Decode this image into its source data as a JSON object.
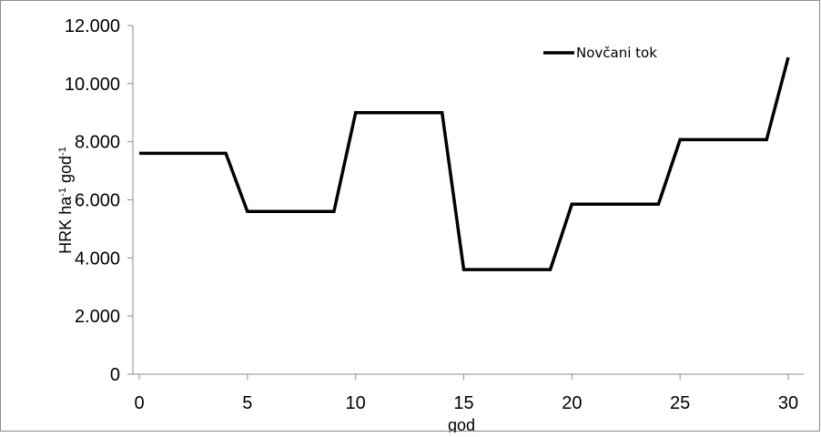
{
  "chart_data": {
    "type": "line",
    "xlabel": "god",
    "ylabel": "HRK ha-1 god-1",
    "ylabel_parts": {
      "base1": "HRK ha",
      "sup1": "-1",
      "base2": " god",
      "sup2": "-1"
    },
    "xlim": [
      0,
      30
    ],
    "ylim": [
      0,
      12000
    ],
    "x_ticks": [
      0,
      5,
      10,
      15,
      20,
      25,
      30
    ],
    "x_tick_labels": [
      "0",
      "5",
      "10",
      "15",
      "20",
      "25",
      "30"
    ],
    "y_ticks": [
      0,
      2000,
      4000,
      6000,
      8000,
      10000,
      12000
    ],
    "y_tick_labels": [
      "0",
      "2.000",
      "4.000",
      "6.000",
      "8.000",
      "10.000",
      "12.000"
    ],
    "grid": false,
    "legend_position": "top-right",
    "series": [
      {
        "name": "Novčani tok",
        "color": "#000000",
        "x": [
          0,
          1,
          2,
          3,
          4,
          5,
          6,
          7,
          8,
          9,
          10,
          11,
          12,
          13,
          14,
          15,
          16,
          17,
          18,
          19,
          20,
          21,
          22,
          23,
          24,
          25,
          26,
          27,
          28,
          29,
          30
        ],
        "y": [
          7600,
          7600,
          7600,
          7600,
          7600,
          5600,
          5600,
          5600,
          5600,
          5600,
          9000,
          9000,
          9000,
          9000,
          9000,
          3600,
          3600,
          3600,
          3600,
          3600,
          5850,
          5850,
          5850,
          5850,
          5850,
          8070,
          8070,
          8070,
          8070,
          8070,
          10900
        ]
      }
    ]
  }
}
